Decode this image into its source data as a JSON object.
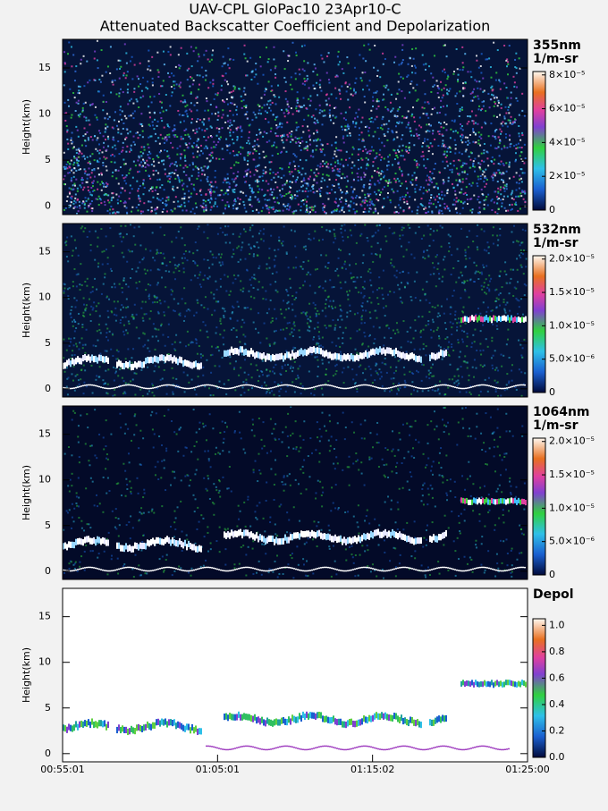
{
  "chart_data": [
    {
      "type": "heatmap",
      "title": "UAV-CPL GloPac10 23Apr10-C",
      "subtitle": "Attenuated Backscatter Coefficient and Depolarization",
      "ylabel": "Height(km)",
      "ylim": [
        -0.9,
        18.1
      ],
      "yticks": [
        0,
        5,
        10,
        15
      ],
      "colorbar": {
        "label": [
          "355nm",
          "1/m-sr"
        ],
        "lim": [
          0,
          8.2e-05
        ],
        "ticks": [
          0,
          {
            "value": 2e-05,
            "label": "2×10⁻⁵"
          },
          {
            "value": 4e-05,
            "label": "4×10⁻⁵"
          },
          {
            "value": 6e-05,
            "label": "6×10⁻⁵"
          },
          {
            "value": 8e-05,
            "label": "8×10⁻⁵"
          }
        ]
      }
    },
    {
      "type": "heatmap",
      "ylabel": "Height(km)",
      "ylim": [
        -0.9,
        18.1
      ],
      "yticks": [
        0,
        5,
        10,
        15
      ],
      "colorbar": {
        "label": [
          "532nm",
          "1/m-sr"
        ],
        "lim": [
          0,
          2.05e-05
        ],
        "ticks": [
          0,
          {
            "value": 5e-06,
            "label": "5.0×10⁻⁶"
          },
          {
            "value": 1e-05,
            "label": "1.0×10⁻⁵"
          },
          {
            "value": 1.5e-05,
            "label": "1.5×10⁻⁵"
          },
          {
            "value": 2e-05,
            "label": "2.0×10⁻⁵"
          }
        ]
      }
    },
    {
      "type": "heatmap",
      "ylabel": "Height(km)",
      "ylim": [
        -0.9,
        18.1
      ],
      "yticks": [
        0,
        5,
        10,
        15
      ],
      "colorbar": {
        "label": [
          "1064nm",
          "1/m-sr"
        ],
        "lim": [
          0,
          2.05e-05
        ],
        "ticks": [
          0,
          {
            "value": 5e-06,
            "label": "5.0×10⁻⁶"
          },
          {
            "value": 1e-05,
            "label": "1.0×10⁻⁵"
          },
          {
            "value": 1.5e-05,
            "label": "1.5×10⁻⁵"
          },
          {
            "value": 2e-05,
            "label": "2.0×10⁻⁵"
          }
        ]
      }
    },
    {
      "type": "heatmap",
      "ylabel": "Height(km)",
      "ylim": [
        -0.9,
        18.1
      ],
      "yticks": [
        0,
        5,
        10,
        15
      ],
      "xticks": [
        "00:55:01",
        "01:05:01",
        "01:15:02",
        "01:25:00"
      ],
      "colorbar": {
        "label": [
          "Depol"
        ],
        "lim": [
          0,
          1.05
        ],
        "ticks": [
          {
            "value": 0,
            "label": "0.0"
          },
          {
            "value": 0.2,
            "label": "0.2"
          },
          {
            "value": 0.4,
            "label": "0.4"
          },
          {
            "value": 0.6,
            "label": "0.6"
          },
          {
            "value": 0.8,
            "label": "0.8"
          },
          {
            "value": 1,
            "label": "1.0"
          }
        ]
      }
    }
  ]
}
